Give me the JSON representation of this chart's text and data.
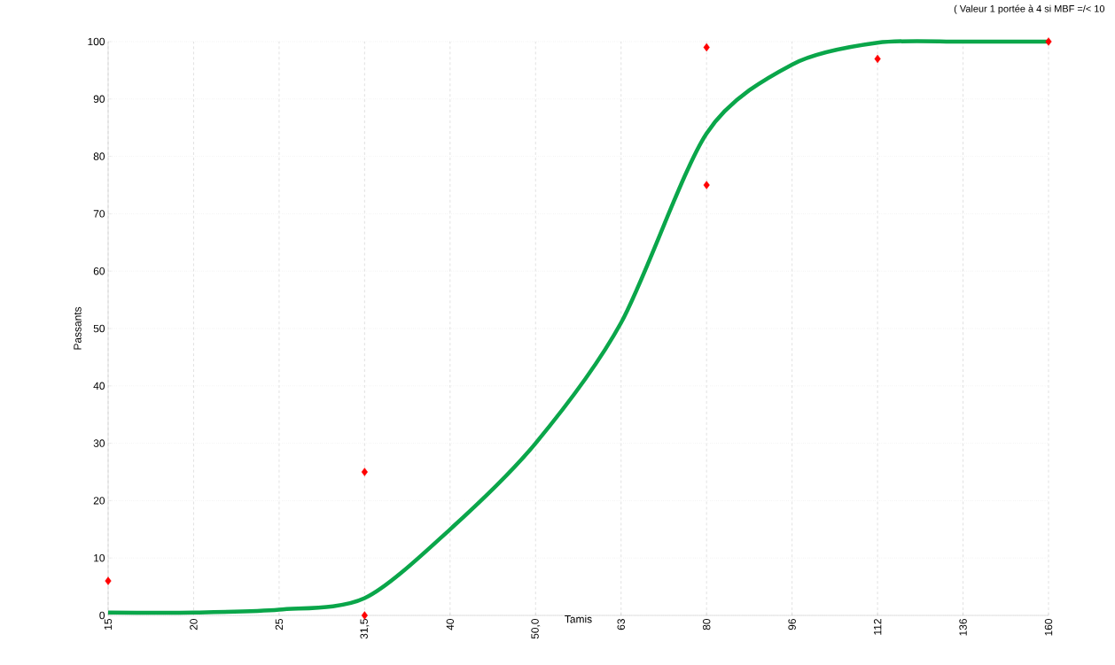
{
  "chart_data": {
    "type": "line",
    "xlabel": "Tamis",
    "ylabel": "Passants",
    "categories": [
      "15",
      "20",
      "25",
      "31,5",
      "40",
      "50,0",
      "63",
      "80",
      "96",
      "112",
      "136",
      "160"
    ],
    "series": [
      {
        "color": "#0aa64a",
        "values": [
          0.5,
          0.5,
          1,
          3,
          15,
          30,
          51,
          84,
          96,
          99.8,
          100,
          100
        ]
      },
      {
        "type": "scatter",
        "color": "#ff0000",
        "marker": "diamond",
        "x": [
          "15",
          "31,5",
          "31,5",
          "80",
          "80",
          "112",
          "160"
        ],
        "values": [
          6,
          25,
          0,
          99,
          75,
          97,
          100
        ]
      }
    ],
    "ylim": [
      0,
      100
    ],
    "yticks": [
      0,
      10,
      20,
      30,
      40,
      50,
      60,
      70,
      80,
      90,
      100
    ],
    "grid": true,
    "marker": "none",
    "line_style": "solid",
    "annotations": [
      "( Valeur 1 portée à 4 si MBF =/< 10"
    ]
  }
}
